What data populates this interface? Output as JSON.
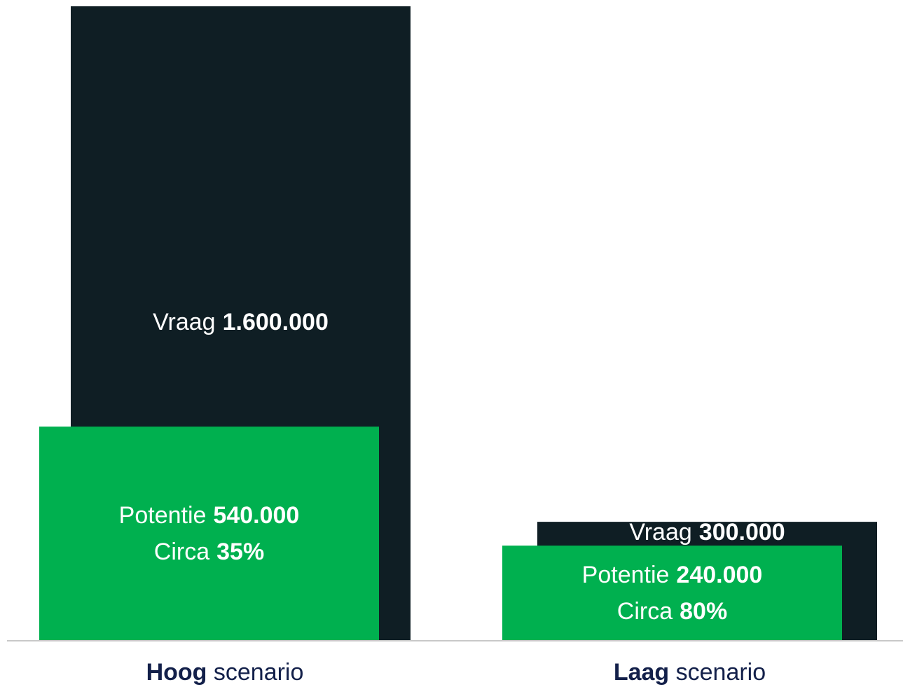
{
  "chart_data": {
    "type": "overlap-bar",
    "categories": [
      "Hoog scenario",
      "Laag scenario"
    ],
    "series": [
      {
        "name": "Vraag",
        "color": "#0f1e24",
        "values": [
          1600000,
          300000
        ],
        "value_labels": [
          "1.600.000",
          "300.000"
        ]
      },
      {
        "name": "Potentie",
        "color": "#00b04f",
        "values": [
          540000,
          240000
        ],
        "value_labels": [
          "540.000",
          "240.000"
        ],
        "share_name": "Circa",
        "shares": [
          35,
          80
        ],
        "share_labels": [
          "35%",
          "80%"
        ]
      }
    ]
  }
}
